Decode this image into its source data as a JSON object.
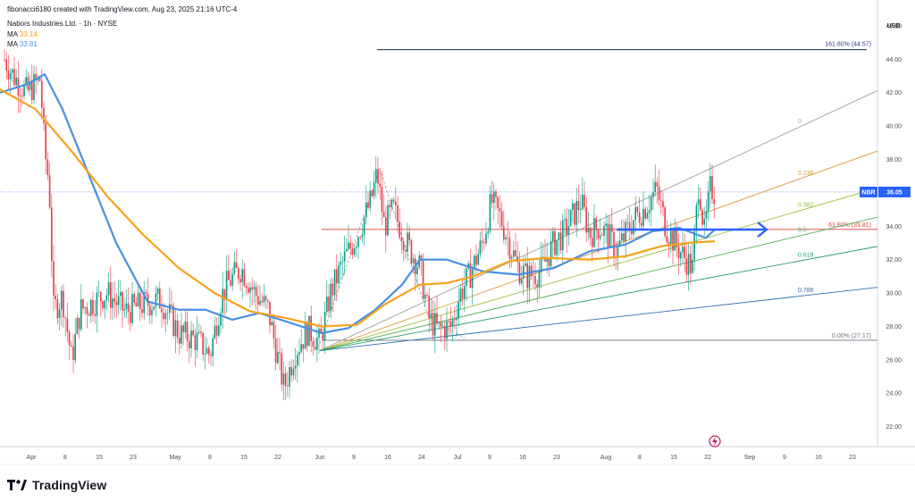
{
  "header": {
    "byline": "fibonacci6180 created with TradingView.com, Aug 23, 2025 21:16 UTC-4",
    "symbol_line": "Nabors Industries Ltd. · 1h · NYSE",
    "ma1_label": "MA",
    "ma1_value": "33.14",
    "ma2_label": "MA",
    "ma2_value": "33.81"
  },
  "colors": {
    "up": "#089981",
    "down": "#f23645",
    "ma_orange": "#f7a21b",
    "ma_blue": "#4a90e2",
    "fib_red": "#e53935",
    "arrow_blue": "#2962ff",
    "ext_line": "#1e2a5a"
  },
  "footer": {
    "brand": "TradingView"
  },
  "chart_data": {
    "type": "candlestick",
    "currency_label": "USD",
    "ylim": [
      20.8,
      46.8
    ],
    "y_ticks": [
      "22.00",
      "24.00",
      "26.00",
      "28.00",
      "30.00",
      "32.00",
      "34.00",
      "36.00",
      "38.00",
      "40.00",
      "42.00",
      "44.00",
      "46.00"
    ],
    "x_ticks": [
      "Apr",
      "8",
      "15",
      "23",
      "May",
      "8",
      "15",
      "22",
      "Jun",
      "9",
      "16",
      "24",
      "Jul",
      "9",
      "16",
      "23",
      "Aug",
      "8",
      "15",
      "22",
      "Sep",
      "9",
      "16",
      "23"
    ],
    "last_price": {
      "symbol": "NBR",
      "value": "36.05"
    },
    "ma_fast": {
      "value": "33.14",
      "points": [
        [
          0,
          42.2
        ],
        [
          40,
          41.0
        ],
        [
          80,
          38.5
        ],
        [
          120,
          35.8
        ],
        [
          160,
          33.5
        ],
        [
          200,
          31.5
        ],
        [
          240,
          30.0
        ],
        [
          280,
          28.9
        ],
        [
          320,
          28.5
        ],
        [
          360,
          28.0
        ],
        [
          400,
          28.1
        ],
        [
          430,
          29.3
        ],
        [
          470,
          30.5
        ],
        [
          500,
          30.6
        ],
        [
          530,
          31.0
        ],
        [
          570,
          31.9
        ],
        [
          610,
          32.1
        ],
        [
          660,
          32.0
        ],
        [
          700,
          32.2
        ],
        [
          740,
          32.8
        ],
        [
          770,
          33.0
        ],
        [
          800,
          33.1
        ]
      ]
    },
    "ma_slow": {
      "value": "33.81",
      "points": [
        [
          0,
          42.0
        ],
        [
          30,
          42.5
        ],
        [
          50,
          43.1
        ],
        [
          70,
          41.0
        ],
        [
          100,
          37.0
        ],
        [
          130,
          33.0
        ],
        [
          165,
          29.5
        ],
        [
          200,
          29.0
        ],
        [
          230,
          29.0
        ],
        [
          260,
          28.4
        ],
        [
          290,
          28.8
        ],
        [
          320,
          28.3
        ],
        [
          360,
          27.6
        ],
        [
          390,
          27.9
        ],
        [
          420,
          29.0
        ],
        [
          450,
          30.5
        ],
        [
          470,
          32.0
        ],
        [
          500,
          32.0
        ],
        [
          540,
          31.3
        ],
        [
          580,
          31.1
        ],
        [
          620,
          31.5
        ],
        [
          660,
          32.5
        ],
        [
          700,
          32.9
        ],
        [
          730,
          33.7
        ],
        [
          760,
          33.9
        ],
        [
          790,
          33.3
        ],
        [
          800,
          33.8
        ]
      ]
    },
    "price_path": [
      [
        5,
        44.0
      ],
      [
        15,
        43.0
      ],
      [
        30,
        42.0
      ],
      [
        45,
        42.8
      ],
      [
        50,
        38.5
      ],
      [
        55,
        36.5
      ],
      [
        60,
        29.0
      ],
      [
        70,
        29.8
      ],
      [
        80,
        26.0
      ],
      [
        90,
        29.0
      ],
      [
        100,
        29.3
      ],
      [
        120,
        30.0
      ],
      [
        140,
        28.9
      ],
      [
        160,
        29.3
      ],
      [
        180,
        29.6
      ],
      [
        200,
        27.6
      ],
      [
        220,
        27.2
      ],
      [
        235,
        26.3
      ],
      [
        248,
        29.8
      ],
      [
        255,
        30.6
      ],
      [
        270,
        31.5
      ],
      [
        285,
        30.0
      ],
      [
        300,
        29.0
      ],
      [
        310,
        26.3
      ],
      [
        318,
        24.3
      ],
      [
        330,
        26.5
      ],
      [
        345,
        27.8
      ],
      [
        358,
        27.0
      ],
      [
        370,
        30.0
      ],
      [
        385,
        32.0
      ],
      [
        400,
        33.5
      ],
      [
        415,
        35.5
      ],
      [
        422,
        37.2
      ],
      [
        430,
        34.0
      ],
      [
        440,
        35.0
      ],
      [
        455,
        33.0
      ],
      [
        470,
        31.5
      ],
      [
        480,
        28.5
      ],
      [
        490,
        27.8
      ],
      [
        505,
        28.0
      ],
      [
        515,
        30.0
      ],
      [
        525,
        31.0
      ],
      [
        540,
        33.0
      ],
      [
        550,
        35.5
      ],
      [
        560,
        34.5
      ],
      [
        570,
        33.0
      ],
      [
        580,
        31.5
      ],
      [
        590,
        31.0
      ],
      [
        605,
        31.3
      ],
      [
        620,
        33.0
      ],
      [
        630,
        33.5
      ],
      [
        650,
        35.5
      ],
      [
        660,
        33.5
      ],
      [
        670,
        34.0
      ],
      [
        680,
        33.5
      ],
      [
        690,
        32.5
      ],
      [
        700,
        33.5
      ],
      [
        710,
        34.5
      ],
      [
        720,
        35.0
      ],
      [
        735,
        36.2
      ],
      [
        745,
        34.0
      ],
      [
        755,
        33.0
      ],
      [
        765,
        32.2
      ],
      [
        775,
        31.5
      ],
      [
        782,
        36.8
      ],
      [
        788,
        33.5
      ],
      [
        795,
        36.3
      ],
      [
        800,
        36.0
      ]
    ],
    "volatility": 1.8,
    "fibonacci_retracement": {
      "anchor_low": "27.17",
      "levels": [
        {
          "label": "0.00% (27.17)",
          "value": 27.17
        },
        {
          "label": "61.80% (33.81)",
          "value": 33.81
        },
        {
          "label": "161.80% (44.57)",
          "value": 44.57
        }
      ]
    },
    "fib_fan": {
      "origin": [
        358,
        26.55
      ],
      "lines": [
        {
          "label": "0",
          "through": [
            893,
            39.9
          ]
        },
        {
          "label": "0.236",
          "through": [
            893,
            36.8
          ]
        },
        {
          "label": "0.382",
          "through": [
            893,
            34.9
          ]
        },
        {
          "label": "0.5",
          "through": [
            893,
            33.4
          ]
        },
        {
          "label": "0.618",
          "through": [
            893,
            31.9
          ]
        },
        {
          "label": "0.786",
          "through": [
            893,
            29.8
          ]
        }
      ]
    },
    "swing_zigzag": [
      [
        358,
        27.0
      ],
      [
        425,
        37.4
      ],
      [
        480,
        28.5
      ],
      [
        520,
        27.3
      ]
    ],
    "arrow": {
      "from": [
        690,
        33.8
      ],
      "to": [
        858,
        33.8
      ]
    },
    "event_marker_x_tick": "22"
  }
}
